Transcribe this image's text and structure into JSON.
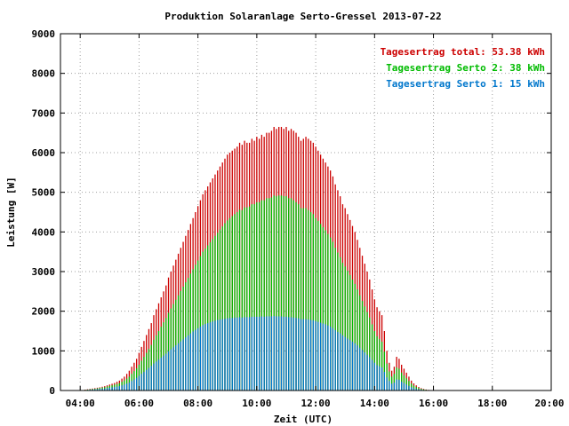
{
  "chart_data": {
    "type": "bar",
    "stacked": "overlay",
    "title": "Produktion Solaranlage Serto-Gressel 2013-07-22",
    "xlabel": "Zeit (UTC)",
    "ylabel": "Leistung [W]",
    "xlim": [
      3.33,
      20.0
    ],
    "ylim": [
      0,
      9000
    ],
    "x_ticks": [
      "04:00",
      "06:00",
      "08:00",
      "10:00",
      "12:00",
      "14:00",
      "16:00",
      "18:00",
      "20:00"
    ],
    "x_tick_values": [
      4,
      6,
      8,
      10,
      12,
      14,
      16,
      18,
      20
    ],
    "y_ticks": [
      0,
      1000,
      2000,
      3000,
      4000,
      5000,
      6000,
      7000,
      8000,
      9000
    ],
    "grid": true,
    "legend_position": "top-right",
    "sample_interval_minutes": 5,
    "x_start_hours": 4.0,
    "x_end_hours": 19.0,
    "series": [
      {
        "name": "Tagesertrag total: 53.38 kWh",
        "color": "#cc0000",
        "values": [
          0,
          10,
          20,
          30,
          40,
          50,
          60,
          70,
          80,
          95,
          110,
          130,
          150,
          170,
          190,
          220,
          250,
          300,
          350,
          420,
          500,
          600,
          700,
          800,
          950,
          1100,
          1250,
          1400,
          1550,
          1700,
          1900,
          2050,
          2200,
          2350,
          2500,
          2650,
          2850,
          3000,
          3150,
          3300,
          3450,
          3600,
          3750,
          3900,
          4050,
          4200,
          4350,
          4500,
          4650,
          4800,
          4950,
          5050,
          5150,
          5250,
          5350,
          5450,
          5550,
          5650,
          5750,
          5850,
          5950,
          6000,
          6050,
          6100,
          6150,
          6250,
          6200,
          6300,
          6250,
          6250,
          6350,
          6300,
          6400,
          6350,
          6450,
          6400,
          6500,
          6500,
          6550,
          6650,
          6600,
          6650,
          6650,
          6600,
          6650,
          6550,
          6600,
          6550,
          6500,
          6400,
          6300,
          6350,
          6400,
          6350,
          6300,
          6250,
          6150,
          6050,
          5950,
          5850,
          5750,
          5650,
          5550,
          5400,
          5200,
          5050,
          4900,
          4700,
          4600,
          4450,
          4300,
          4150,
          4000,
          3800,
          3600,
          3400,
          3200,
          3000,
          2800,
          2550,
          2300,
          2100,
          2000,
          1900,
          1500,
          1000,
          700,
          500,
          600,
          850,
          800,
          650,
          550,
          450,
          350,
          250,
          180,
          130,
          90,
          60,
          40,
          25,
          15,
          10,
          5,
          0,
          0,
          0,
          0,
          0,
          0,
          0,
          0,
          0,
          0,
          0,
          0,
          0,
          0,
          0,
          0,
          0,
          0,
          0,
          0,
          0,
          0,
          0,
          0,
          0,
          0,
          0,
          0,
          0,
          0,
          0,
          0,
          0,
          0,
          0,
          0,
          0,
          0,
          0,
          0,
          0,
          0
        ]
      },
      {
        "name": "Tagesertrag Serto 2: 38 kWh",
        "color": "#00bb00",
        "values": [
          0,
          8,
          15,
          22,
          30,
          38,
          45,
          55,
          65,
          75,
          85,
          100,
          115,
          130,
          145,
          165,
          185,
          220,
          255,
          300,
          350,
          420,
          490,
          560,
          650,
          750,
          850,
          950,
          1050,
          1150,
          1280,
          1390,
          1500,
          1610,
          1720,
          1830,
          1960,
          2070,
          2180,
          2290,
          2400,
          2510,
          2620,
          2730,
          2840,
          2950,
          3060,
          3170,
          3280,
          3390,
          3500,
          3580,
          3660,
          3740,
          3820,
          3900,
          3980,
          4060,
          4140,
          4220,
          4290,
          4350,
          4400,
          4450,
          4500,
          4560,
          4550,
          4620,
          4620,
          4640,
          4700,
          4700,
          4750,
          4750,
          4800,
          4800,
          4850,
          4850,
          4870,
          4920,
          4900,
          4920,
          4920,
          4900,
          4900,
          4850,
          4850,
          4800,
          4750,
          4700,
          4600,
          4600,
          4600,
          4550,
          4500,
          4450,
          4350,
          4280,
          4200,
          4120,
          4040,
          3950,
          3860,
          3750,
          3600,
          3480,
          3360,
          3220,
          3130,
          3020,
          2910,
          2800,
          2690,
          2550,
          2400,
          2260,
          2120,
          1980,
          1840,
          1670,
          1500,
          1370,
          1300,
          1230,
          980,
          680,
          480,
          350,
          420,
          580,
          550,
          450,
          380,
          310,
          240,
          175,
          125,
          90,
          62,
          42,
          28,
          18,
          11,
          7,
          4,
          0,
          0,
          0,
          0,
          0,
          0,
          0,
          0,
          0,
          0,
          0,
          0,
          0,
          0,
          0,
          0,
          0,
          0,
          0,
          0,
          0,
          0,
          0,
          0,
          0,
          0,
          0,
          0,
          0,
          0,
          0,
          0,
          0,
          0,
          0,
          0,
          0,
          0,
          0,
          0,
          0,
          0
        ]
      },
      {
        "name": "Tagesertrag Serto 1: 15 kWh",
        "color": "#0077cc",
        "values": [
          0,
          5,
          10,
          15,
          20,
          25,
          30,
          35,
          40,
          45,
          50,
          60,
          70,
          80,
          90,
          100,
          110,
          130,
          150,
          175,
          200,
          240,
          280,
          320,
          370,
          420,
          470,
          520,
          570,
          620,
          680,
          730,
          780,
          830,
          880,
          930,
          990,
          1040,
          1090,
          1140,
          1190,
          1240,
          1290,
          1340,
          1390,
          1440,
          1490,
          1530,
          1570,
          1610,
          1650,
          1680,
          1700,
          1720,
          1740,
          1760,
          1780,
          1790,
          1800,
          1810,
          1820,
          1830,
          1830,
          1840,
          1840,
          1850,
          1840,
          1850,
          1850,
          1850,
          1860,
          1860,
          1860,
          1860,
          1870,
          1860,
          1870,
          1870,
          1870,
          1880,
          1870,
          1870,
          1870,
          1860,
          1860,
          1850,
          1850,
          1840,
          1830,
          1820,
          1800,
          1800,
          1800,
          1790,
          1780,
          1770,
          1750,
          1730,
          1710,
          1690,
          1670,
          1640,
          1610,
          1570,
          1520,
          1480,
          1440,
          1390,
          1350,
          1310,
          1270,
          1230,
          1190,
          1140,
          1080,
          1020,
          960,
          900,
          840,
          770,
          700,
          640,
          610,
          580,
          470,
          330,
          240,
          170,
          200,
          280,
          270,
          220,
          190,
          150,
          115,
          85,
          60,
          45,
          30,
          20,
          14,
          9,
          6,
          4,
          2,
          0,
          0,
          0,
          0,
          0,
          0,
          0,
          0,
          0,
          0,
          0,
          0,
          0,
          0,
          0,
          0,
          0,
          0,
          0,
          0,
          0,
          0,
          0,
          0,
          0,
          0,
          0,
          0,
          0,
          0,
          0,
          0,
          0,
          0,
          0,
          0,
          0,
          0,
          0,
          0,
          0,
          0
        ]
      }
    ]
  }
}
